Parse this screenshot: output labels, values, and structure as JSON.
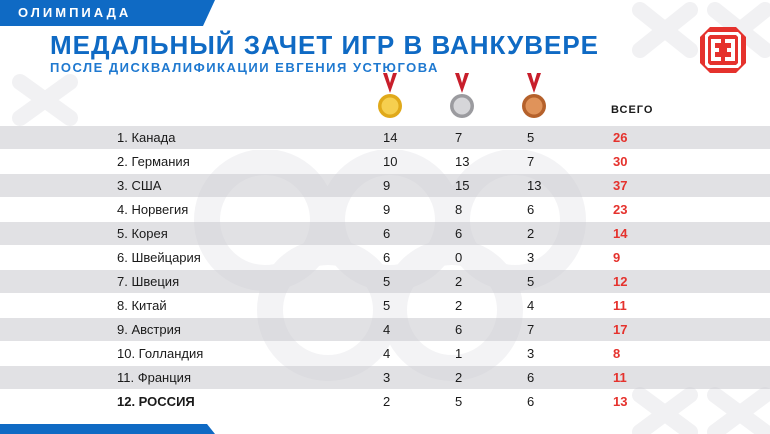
{
  "header": {
    "section_label": "ОЛИМПИАДА",
    "title": "МЕДАЛЬНЫЙ ЗАЧЕТ ИГР В ВАНКУВЕРЕ",
    "subtitle": "ПОСЛЕ ДИСКВАЛИФИКАЦИИ ЕВГЕНИЯ УСТЮГОВА",
    "logo_icon": "sport-express-logo-icon"
  },
  "colors": {
    "brand_blue": "#0f6ac4",
    "total_red": "#e5322d",
    "row_shade": "#c9c9cd",
    "ribbon_red": "#c81e2b"
  },
  "table": {
    "total_header": "ВСЕГО",
    "medal_icons": [
      "gold-medal-icon",
      "silver-medal-icon",
      "bronze-medal-icon"
    ],
    "rows": [
      {
        "country": "1. Канада",
        "gold": "14",
        "silver": "7",
        "bronze": "5",
        "total": "26"
      },
      {
        "country": "2. Германия",
        "gold": "10",
        "silver": "13",
        "bronze": "7",
        "total": "30"
      },
      {
        "country": "3. США",
        "gold": "9",
        "silver": "15",
        "bronze": "13",
        "total": "37"
      },
      {
        "country": "4. Норвегия",
        "gold": "9",
        "silver": "8",
        "bronze": "6",
        "total": "23"
      },
      {
        "country": "5. Корея",
        "gold": "6",
        "silver": "6",
        "bronze": "2",
        "total": "14"
      },
      {
        "country": "6. Швейцария",
        "gold": "6",
        "silver": "0",
        "bronze": "3",
        "total": "9"
      },
      {
        "country": "7. Швеция",
        "gold": "5",
        "silver": "2",
        "bronze": "5",
        "total": "12"
      },
      {
        "country": "8. Китай",
        "gold": "5",
        "silver": "2",
        "bronze": "4",
        "total": "11"
      },
      {
        "country": "9. Австрия",
        "gold": "4",
        "silver": "6",
        "bronze": "7",
        "total": "17"
      },
      {
        "country": "10. Голландия",
        "gold": "4",
        "silver": "1",
        "bronze": "3",
        "total": "8"
      },
      {
        "country": "11. Франция",
        "gold": "3",
        "silver": "2",
        "bronze": "6",
        "total": "11"
      },
      {
        "country": "12. РОССИЯ",
        "gold": "2",
        "silver": "5",
        "bronze": "6",
        "total": "13"
      }
    ]
  }
}
